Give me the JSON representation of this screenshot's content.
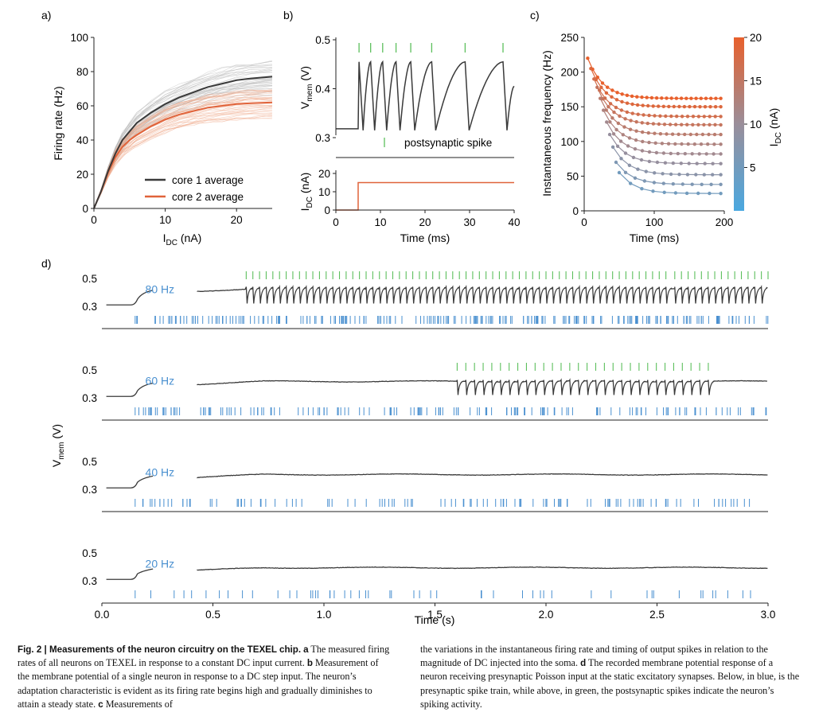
{
  "colors": {
    "core1": "#3a3a3a",
    "core2": "#e0633a",
    "post_spike": "#5cbf5c",
    "pre_spike": "#4a90d0",
    "axis": "#222222",
    "cmap_low": "#4aa8e0",
    "cmap_mid": "#9a8e9a",
    "cmap_high": "#e8602c"
  },
  "panels": {
    "a": {
      "label": "a)"
    },
    "b": {
      "label": "b)"
    },
    "c": {
      "label": "c)"
    },
    "d": {
      "label": "d)"
    }
  },
  "chart_data": [
    {
      "panel": "a",
      "type": "line",
      "xlabel": "I",
      "xlabel_sub": "DC",
      "xlabel_unit": " (nA)",
      "ylabel": "Firing rate (Hz)",
      "xlim": [
        0,
        25
      ],
      "ylim": [
        0,
        100
      ],
      "xticks": [
        "0",
        "10",
        "20"
      ],
      "yticks": [
        "0",
        "20",
        "40",
        "60",
        "80",
        "100"
      ],
      "legend_position": "lower-right",
      "series": [
        {
          "name": "core 1 average",
          "x": [
            0,
            1,
            2,
            3,
            4,
            5,
            6,
            8,
            10,
            12,
            14,
            16,
            18,
            20,
            22,
            25
          ],
          "values": [
            0,
            10,
            22,
            32,
            40,
            45,
            50,
            56,
            61,
            65,
            68,
            71,
            73,
            75,
            76,
            77
          ]
        },
        {
          "name": "core 2 average",
          "x": [
            0,
            1,
            2,
            3,
            4,
            5,
            6,
            8,
            10,
            12,
            14,
            16,
            18,
            20,
            22,
            25
          ],
          "values": [
            0,
            10,
            21,
            30,
            36,
            40,
            43,
            48,
            52,
            55,
            57,
            59,
            60,
            61,
            61.5,
            62
          ]
        }
      ]
    },
    {
      "panel": "b",
      "type": "line",
      "top": {
        "ylabel": "V",
        "ylabel_sub": "mem",
        "ylabel_unit": " (V)",
        "ylim": [
          0.3,
          0.5
        ],
        "yticks": [
          "0.3",
          "0.4",
          "0.5"
        ],
        "annotation": "postsynaptic spike",
        "spike_times_ms": [
          5.2,
          7.8,
          10.5,
          13.5,
          16.8,
          21.5,
          29,
          37.5
        ],
        "baseline_v": 0.318,
        "peak_v": 0.455,
        "trough_v": 0.315
      },
      "bottom": {
        "ylabel": "I",
        "ylabel_sub": "DC",
        "ylabel_unit": " (nA)",
        "ylim": [
          0,
          20
        ],
        "yticks": [
          "0",
          "10",
          "20"
        ],
        "x": [
          0,
          5,
          5,
          40
        ],
        "values": [
          0,
          0,
          15,
          15
        ]
      },
      "xlabel": "Time (ms)",
      "xlim": [
        0,
        40
      ],
      "xticks": [
        "0",
        "10",
        "20",
        "30",
        "40"
      ]
    },
    {
      "panel": "c",
      "type": "scatter",
      "xlabel": "Time (ms)",
      "ylabel": "Instantaneous frequency (Hz)",
      "xlim": [
        0,
        200
      ],
      "ylim": [
        0,
        250
      ],
      "xticks": [
        "0",
        "100",
        "200"
      ],
      "yticks": [
        "0",
        "50",
        "100",
        "150",
        "200",
        "250"
      ],
      "colorbar": {
        "label": "I",
        "label_sub": "DC",
        "label_unit": " (nA)",
        "ticks": [
          "5",
          "10",
          "15",
          "20"
        ],
        "min": 0,
        "max": 20
      },
      "series": [
        {
          "current_nA": 20,
          "start": 220,
          "steady": 162
        },
        {
          "current_nA": 18.5,
          "start": 205,
          "steady": 150
        },
        {
          "current_nA": 17,
          "start": 190,
          "steady": 136
        },
        {
          "current_nA": 15.5,
          "start": 178,
          "steady": 124
        },
        {
          "current_nA": 14,
          "start": 162,
          "steady": 110
        },
        {
          "current_nA": 12.5,
          "start": 145,
          "steady": 96
        },
        {
          "current_nA": 11,
          "start": 128,
          "steady": 82
        },
        {
          "current_nA": 9.5,
          "start": 110,
          "steady": 68
        },
        {
          "current_nA": 8,
          "start": 92,
          "steady": 52
        },
        {
          "current_nA": 6.5,
          "start": 70,
          "steady": 38
        },
        {
          "current_nA": 5,
          "start": 55,
          "steady": 25
        }
      ]
    },
    {
      "panel": "d",
      "type": "line",
      "xlabel": "Time (s)",
      "ylabel": "V",
      "ylabel_sub": "mem",
      "ylabel_unit": " (V)",
      "xlim": [
        0,
        3
      ],
      "xticks": [
        "0.0",
        "0.5",
        "1.0",
        "1.5",
        "2.0",
        "2.5",
        "3.0"
      ],
      "yticks": [
        "0.3",
        "0.5"
      ],
      "rows": [
        {
          "rate_label": "80 Hz",
          "pre_rate_hz": 80,
          "firing_windows_s": [
            [
              0.65,
              2.55
            ],
            [
              2.58,
              3.0
            ]
          ],
          "spike_interval_s": 0.03
        },
        {
          "rate_label": "60 Hz",
          "pre_rate_hz": 60,
          "firing_windows_s": [
            [
              1.6,
              2.77
            ]
          ],
          "spike_interval_s": 0.039
        },
        {
          "rate_label": "40 Hz",
          "pre_rate_hz": 40,
          "firing_windows_s": [],
          "spike_interval_s": 0
        },
        {
          "rate_label": "20 Hz",
          "pre_rate_hz": 20,
          "firing_windows_s": [],
          "spike_interval_s": 0
        }
      ]
    }
  ],
  "caption": {
    "left": {
      "heading": "Fig. 2 | Measurements of the neuron circuitry on the TEXEL chip.",
      "a_label": "a",
      "a_text": "The measured firing rates of all neurons on TEXEL in response to a constant DC input current.",
      "b_label": "b",
      "b_text": "Measurement of the membrane potential of a single neuron in response to a DC step input. The neuron’s adaptation characteristic is evident as its firing rate begins high and gradually diminishes to attain a steady state.",
      "c_label": "c",
      "c_text": "Measurements of"
    },
    "right": {
      "c_cont": "the variations in the instantaneous firing rate and timing of output spikes in relation to the magnitude of DC injected into the soma.",
      "d_label": "d",
      "d_text": "The recorded membrane potential response of a neuron receiving presynaptic Poisson input at the static excitatory synapses. Below, in blue, is the presynaptic spike train, while above, in green, the postsynaptic spikes indicate the neuron’s spiking activity."
    }
  }
}
